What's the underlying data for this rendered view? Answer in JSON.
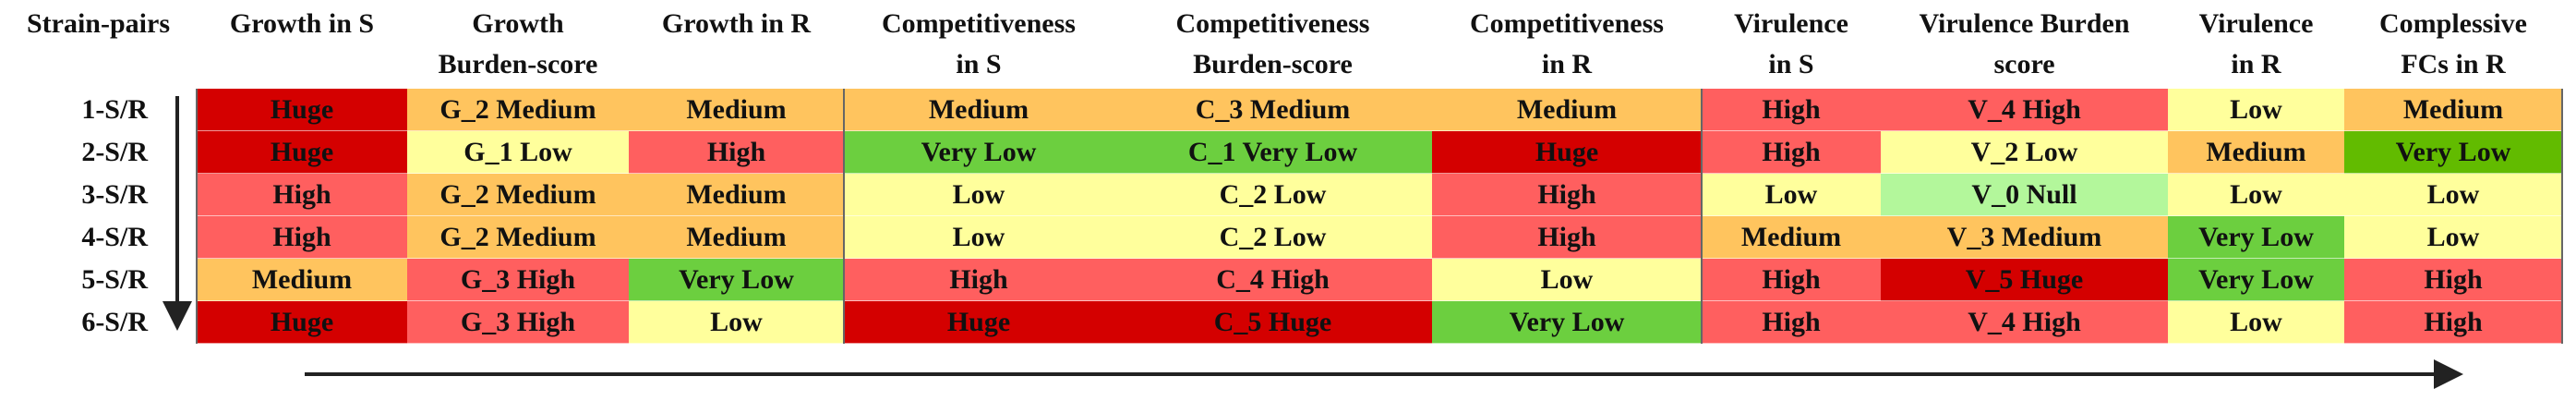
{
  "header": [
    "Strain-pairs",
    "Growth in S",
    [
      "Growth",
      "Burden-score"
    ],
    "Growth in R",
    [
      "Competitiveness",
      "in S"
    ],
    [
      "Competitiveness",
      "Burden-score"
    ],
    [
      "Competitiveness",
      "in R"
    ],
    [
      "Virulence",
      "in S"
    ],
    [
      "Virulence Burden",
      "score"
    ],
    [
      "Virulence",
      "in R"
    ],
    [
      "Complessive",
      "FCs in R"
    ]
  ],
  "table": {
    "rows": [
      {
        "label": "1-S/R",
        "cells": [
          {
            "text": "Huge",
            "color": "#d40000"
          },
          {
            "text": "G_2 Medium",
            "color": "#ffc45e"
          },
          {
            "text": "Medium",
            "color": "#ffc45e"
          },
          {
            "text": "Medium",
            "color": "#ffc45e"
          },
          {
            "text": "C_3 Medium",
            "color": "#ffc45e"
          },
          {
            "text": "Medium",
            "color": "#ffc45e"
          },
          {
            "text": "High",
            "color": "#ff5f5f"
          },
          {
            "text": "V_4 High",
            "color": "#ff5f5f"
          },
          {
            "text": "Low",
            "color": "#ffff9c"
          },
          {
            "text": "Medium",
            "color": "#ffc45e"
          }
        ]
      },
      {
        "label": "2-S/R",
        "cells": [
          {
            "text": "Huge",
            "color": "#d40000"
          },
          {
            "text": "G_1 Low",
            "color": "#ffff9c"
          },
          {
            "text": "High",
            "color": "#ff5f5f"
          },
          {
            "text": "Very Low",
            "color": "#6ccf3f"
          },
          {
            "text": "C_1 Very Low",
            "color": "#6ccf3f"
          },
          {
            "text": "Huge",
            "color": "#d40000"
          },
          {
            "text": "High",
            "color": "#ff5f5f"
          },
          {
            "text": "V_2 Low",
            "color": "#ffff9c"
          },
          {
            "text": "Medium",
            "color": "#ffc45e"
          },
          {
            "text": "Very Low",
            "color": "#62bb00"
          }
        ]
      },
      {
        "label": "3-S/R",
        "cells": [
          {
            "text": "High",
            "color": "#ff5f5f"
          },
          {
            "text": "G_2 Medium",
            "color": "#ffc45e"
          },
          {
            "text": "Medium",
            "color": "#ffc45e"
          },
          {
            "text": "Low",
            "color": "#ffff9c"
          },
          {
            "text": "C_2 Low",
            "color": "#ffff9c"
          },
          {
            "text": "High",
            "color": "#ff5f5f"
          },
          {
            "text": "Low",
            "color": "#ffff9c"
          },
          {
            "text": "V_0 Null",
            "color": "#b3f79b"
          },
          {
            "text": "Low",
            "color": "#ffff9c"
          },
          {
            "text": "Low",
            "color": "#ffff9c"
          }
        ]
      },
      {
        "label": "4-S/R",
        "cells": [
          {
            "text": "High",
            "color": "#ff5f5f"
          },
          {
            "text": "G_2 Medium",
            "color": "#ffc45e"
          },
          {
            "text": "Medium",
            "color": "#ffc45e"
          },
          {
            "text": "Low",
            "color": "#ffff9c"
          },
          {
            "text": "C_2 Low",
            "color": "#ffff9c"
          },
          {
            "text": "High",
            "color": "#ff5f5f"
          },
          {
            "text": "Medium",
            "color": "#ffc45e"
          },
          {
            "text": "V_3 Medium",
            "color": "#ffc45e"
          },
          {
            "text": "Very Low",
            "color": "#6ccf3f"
          },
          {
            "text": "Low",
            "color": "#ffff9c"
          }
        ]
      },
      {
        "label": "5-S/R",
        "cells": [
          {
            "text": "Medium",
            "color": "#ffc45e"
          },
          {
            "text": "G_3 High",
            "color": "#ff5f5f"
          },
          {
            "text": "Very Low",
            "color": "#6ccf3f"
          },
          {
            "text": "High",
            "color": "#ff5f5f"
          },
          {
            "text": "C_4 High",
            "color": "#ff5f5f"
          },
          {
            "text": "Low",
            "color": "#ffff9c"
          },
          {
            "text": "High",
            "color": "#ff5f5f"
          },
          {
            "text": "V_5 Huge",
            "color": "#d40000"
          },
          {
            "text": "Very Low",
            "color": "#6ccf3f"
          },
          {
            "text": "High",
            "color": "#ff5f5f"
          }
        ]
      },
      {
        "label": "6-S/R",
        "cells": [
          {
            "text": "Huge",
            "color": "#d40000"
          },
          {
            "text": "G_3 High",
            "color": "#ff5f5f"
          },
          {
            "text": "Low",
            "color": "#ffff9c"
          },
          {
            "text": "Huge",
            "color": "#d40000"
          },
          {
            "text": "C_5 Huge",
            "color": "#d40000"
          },
          {
            "text": "Very Low",
            "color": "#6ccf3f"
          },
          {
            "text": "High",
            "color": "#ff5f5f"
          },
          {
            "text": "V_4 High",
            "color": "#ff5f5f"
          },
          {
            "text": "Low",
            "color": "#ffff9c"
          },
          {
            "text": "High",
            "color": "#ff5f5f"
          }
        ]
      }
    ]
  }
}
